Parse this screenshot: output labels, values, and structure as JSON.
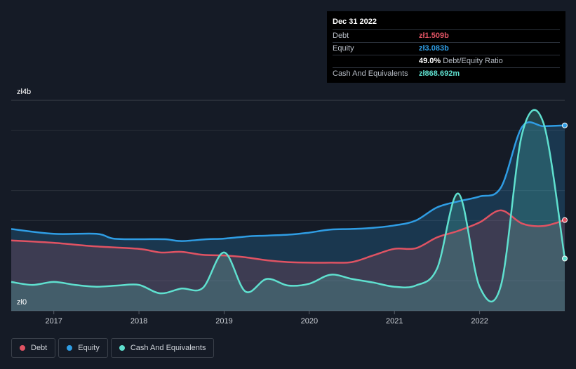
{
  "tooltip": {
    "date": "Dec 31 2022",
    "rows": [
      {
        "label": "Debt",
        "value": "zł1.509b",
        "color": "#e05363"
      },
      {
        "label": "Equity",
        "value": "zł3.083b",
        "color": "#2f9de4"
      },
      {
        "label": "",
        "value": "49.0%",
        "suffix": "Debt/Equity Ratio",
        "color": "#ffffff"
      },
      {
        "label": "Cash And Equivalents",
        "value": "zł868.692m",
        "color": "#5fe0cf"
      }
    ]
  },
  "legend": [
    {
      "label": "Debt",
      "color": "#e05363"
    },
    {
      "label": "Equity",
      "color": "#2f9de4"
    },
    {
      "label": "Cash And Equivalents",
      "color": "#5fe0cf"
    }
  ],
  "chart_data": {
    "type": "line",
    "y_top_label": "zł4b",
    "y_bottom_label": "zł0",
    "ylim": [
      0,
      3.5
    ],
    "xlim": [
      2016.5,
      2023.0
    ],
    "x_ticks": [
      2017,
      2018,
      2019,
      2020,
      2021,
      2022
    ],
    "x_tick_labels": [
      "2017",
      "2018",
      "2019",
      "2020",
      "2021",
      "2022"
    ],
    "grid": true,
    "series": [
      {
        "name": "Equity",
        "color": "#2f9de4",
        "points": [
          [
            2016.5,
            1.36
          ],
          [
            2017.0,
            1.28
          ],
          [
            2017.5,
            1.28
          ],
          [
            2017.7,
            1.2
          ],
          [
            2018.0,
            1.19
          ],
          [
            2018.3,
            1.19
          ],
          [
            2018.5,
            1.16
          ],
          [
            2018.8,
            1.19
          ],
          [
            2019.0,
            1.2
          ],
          [
            2019.3,
            1.24
          ],
          [
            2019.5,
            1.25
          ],
          [
            2019.8,
            1.27
          ],
          [
            2020.0,
            1.3
          ],
          [
            2020.25,
            1.35
          ],
          [
            2020.5,
            1.36
          ],
          [
            2020.75,
            1.38
          ],
          [
            2021.0,
            1.42
          ],
          [
            2021.25,
            1.5
          ],
          [
            2021.5,
            1.72
          ],
          [
            2021.75,
            1.82
          ],
          [
            2022.0,
            1.9
          ],
          [
            2022.25,
            2.05
          ],
          [
            2022.5,
            3.06
          ],
          [
            2022.75,
            3.07
          ],
          [
            2023.0,
            3.083
          ]
        ]
      },
      {
        "name": "Debt",
        "color": "#e05363",
        "points": [
          [
            2016.5,
            1.17
          ],
          [
            2017.0,
            1.13
          ],
          [
            2017.5,
            1.07
          ],
          [
            2018.0,
            1.03
          ],
          [
            2018.25,
            0.97
          ],
          [
            2018.5,
            0.98
          ],
          [
            2018.75,
            0.93
          ],
          [
            2019.0,
            0.92
          ],
          [
            2019.25,
            0.89
          ],
          [
            2019.5,
            0.84
          ],
          [
            2019.75,
            0.81
          ],
          [
            2020.0,
            0.8
          ],
          [
            2020.25,
            0.8
          ],
          [
            2020.5,
            0.81
          ],
          [
            2020.75,
            0.92
          ],
          [
            2021.0,
            1.03
          ],
          [
            2021.25,
            1.04
          ],
          [
            2021.5,
            1.22
          ],
          [
            2021.75,
            1.33
          ],
          [
            2022.0,
            1.47
          ],
          [
            2022.25,
            1.67
          ],
          [
            2022.5,
            1.45
          ],
          [
            2022.75,
            1.41
          ],
          [
            2023.0,
            1.509
          ]
        ]
      },
      {
        "name": "Cash And Equivalents",
        "color": "#5fe0cf",
        "points": [
          [
            2016.5,
            0.48
          ],
          [
            2016.75,
            0.43
          ],
          [
            2017.0,
            0.48
          ],
          [
            2017.25,
            0.43
          ],
          [
            2017.5,
            0.4
          ],
          [
            2017.75,
            0.42
          ],
          [
            2018.0,
            0.43
          ],
          [
            2018.25,
            0.29
          ],
          [
            2018.5,
            0.37
          ],
          [
            2018.75,
            0.38
          ],
          [
            2019.0,
            0.97
          ],
          [
            2019.25,
            0.32
          ],
          [
            2019.5,
            0.53
          ],
          [
            2019.75,
            0.42
          ],
          [
            2020.0,
            0.45
          ],
          [
            2020.25,
            0.6
          ],
          [
            2020.5,
            0.53
          ],
          [
            2020.75,
            0.47
          ],
          [
            2021.0,
            0.4
          ],
          [
            2021.25,
            0.42
          ],
          [
            2021.5,
            0.7
          ],
          [
            2021.75,
            1.95
          ],
          [
            2022.0,
            0.4
          ],
          [
            2022.25,
            0.42
          ],
          [
            2022.5,
            2.95
          ],
          [
            2022.75,
            3.12
          ],
          [
            2023.0,
            0.869
          ]
        ]
      }
    ]
  }
}
